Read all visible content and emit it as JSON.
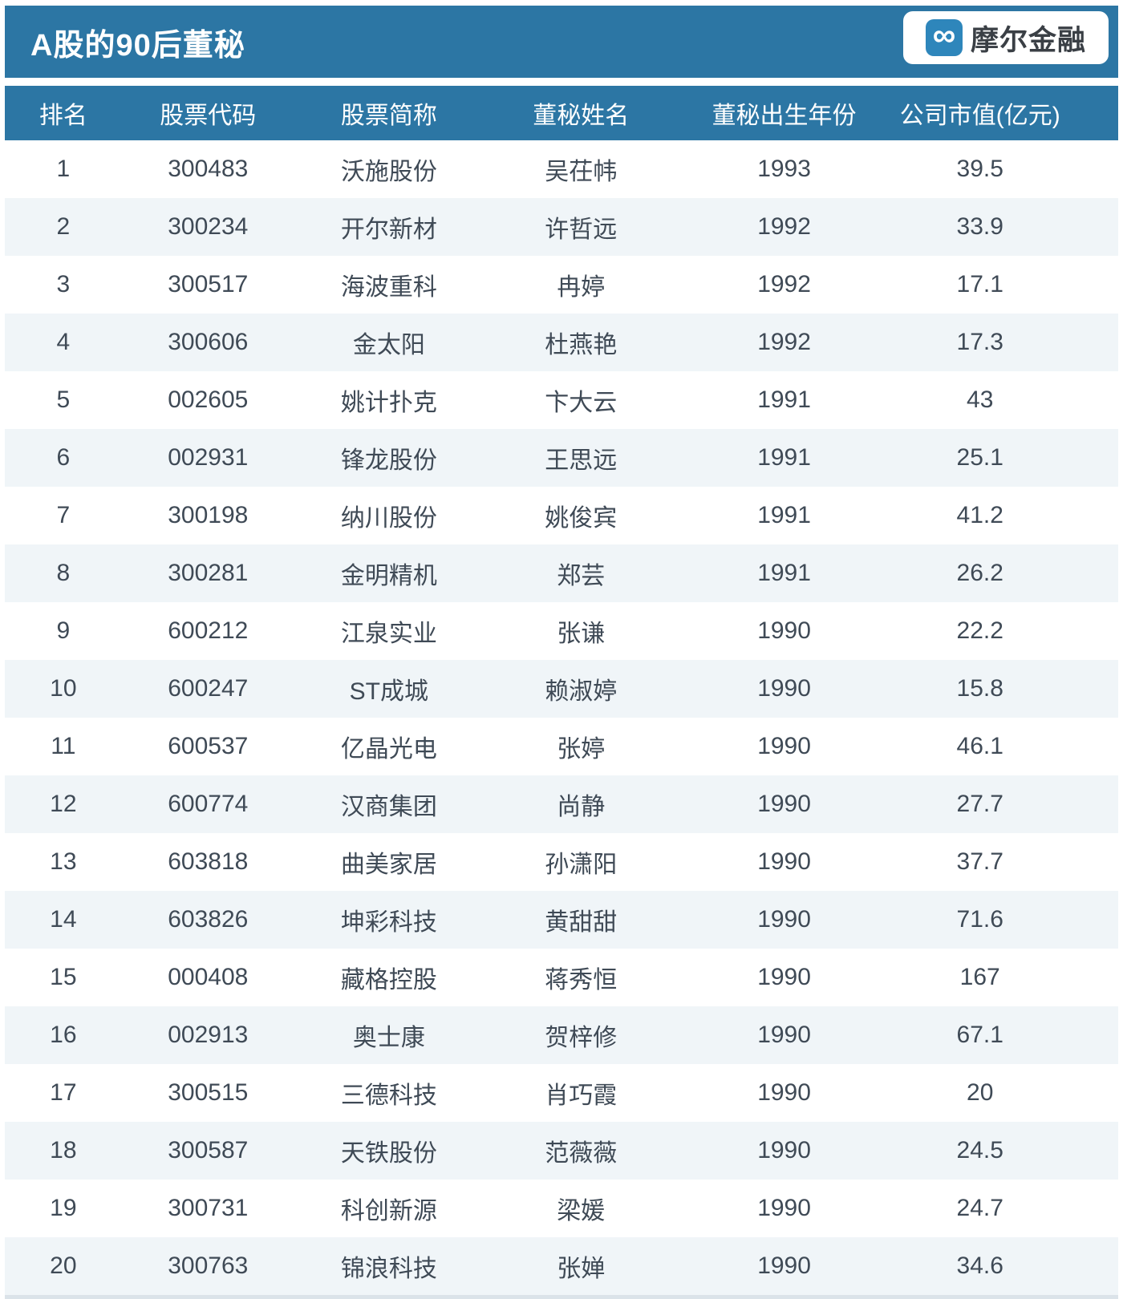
{
  "header": {
    "title": "A股的90后董秘",
    "brand_name": "摩尔金融",
    "brand_icon_glyph": "∞"
  },
  "chart_data": {
    "type": "table",
    "title": "A股的90后董秘",
    "columns": [
      "排名",
      "股票代码",
      "股票简称",
      "董秘姓名",
      "董秘出生年份",
      "公司市值(亿元)"
    ],
    "rows": [
      [
        "1",
        "300483",
        "沃施股份",
        "吴茌帏",
        "1993",
        "39.5"
      ],
      [
        "2",
        "300234",
        "开尔新材",
        "许哲远",
        "1992",
        "33.9"
      ],
      [
        "3",
        "300517",
        "海波重科",
        "冉婷",
        "1992",
        "17.1"
      ],
      [
        "4",
        "300606",
        "金太阳",
        "杜燕艳",
        "1992",
        "17.3"
      ],
      [
        "5",
        "002605",
        "姚计扑克",
        "卞大云",
        "1991",
        "43"
      ],
      [
        "6",
        "002931",
        "锋龙股份",
        "王思远",
        "1991",
        "25.1"
      ],
      [
        "7",
        "300198",
        "纳川股份",
        "姚俊宾",
        "1991",
        "41.2"
      ],
      [
        "8",
        "300281",
        "金明精机",
        "郑芸",
        "1991",
        "26.2"
      ],
      [
        "9",
        "600212",
        "江泉实业",
        "张谦",
        "1990",
        "22.2"
      ],
      [
        "10",
        "600247",
        "ST成城",
        "赖淑婷",
        "1990",
        "15.8"
      ],
      [
        "11",
        "600537",
        "亿晶光电",
        "张婷",
        "1990",
        "46.1"
      ],
      [
        "12",
        "600774",
        "汉商集团",
        "尚静",
        "1990",
        "27.7"
      ],
      [
        "13",
        "603818",
        "曲美家居",
        "孙潇阳",
        "1990",
        "37.7"
      ],
      [
        "14",
        "603826",
        "坤彩科技",
        "黄甜甜",
        "1990",
        "71.6"
      ],
      [
        "15",
        "000408",
        "藏格控股",
        "蒋秀恒",
        "1990",
        "167"
      ],
      [
        "16",
        "002913",
        "奥士康",
        "贺梓修",
        "1990",
        "67.1"
      ],
      [
        "17",
        "300515",
        "三德科技",
        "肖巧霞",
        "1990",
        "20"
      ],
      [
        "18",
        "300587",
        "天铁股份",
        "范薇薇",
        "1990",
        "24.5"
      ],
      [
        "19",
        "300731",
        "科创新源",
        "梁媛",
        "1990",
        "24.7"
      ],
      [
        "20",
        "300763",
        "锦浪科技",
        "张婵",
        "1990",
        "34.6"
      ]
    ]
  },
  "colors": {
    "header_bg": "#2c76a4",
    "row_alt_bg": "#f0f5f8",
    "body_text": "#3f4a56",
    "brand_icon_bg": "#2e86bb",
    "brand_text": "#3a3f45",
    "bottom_shadow": "#dbe3e9"
  }
}
